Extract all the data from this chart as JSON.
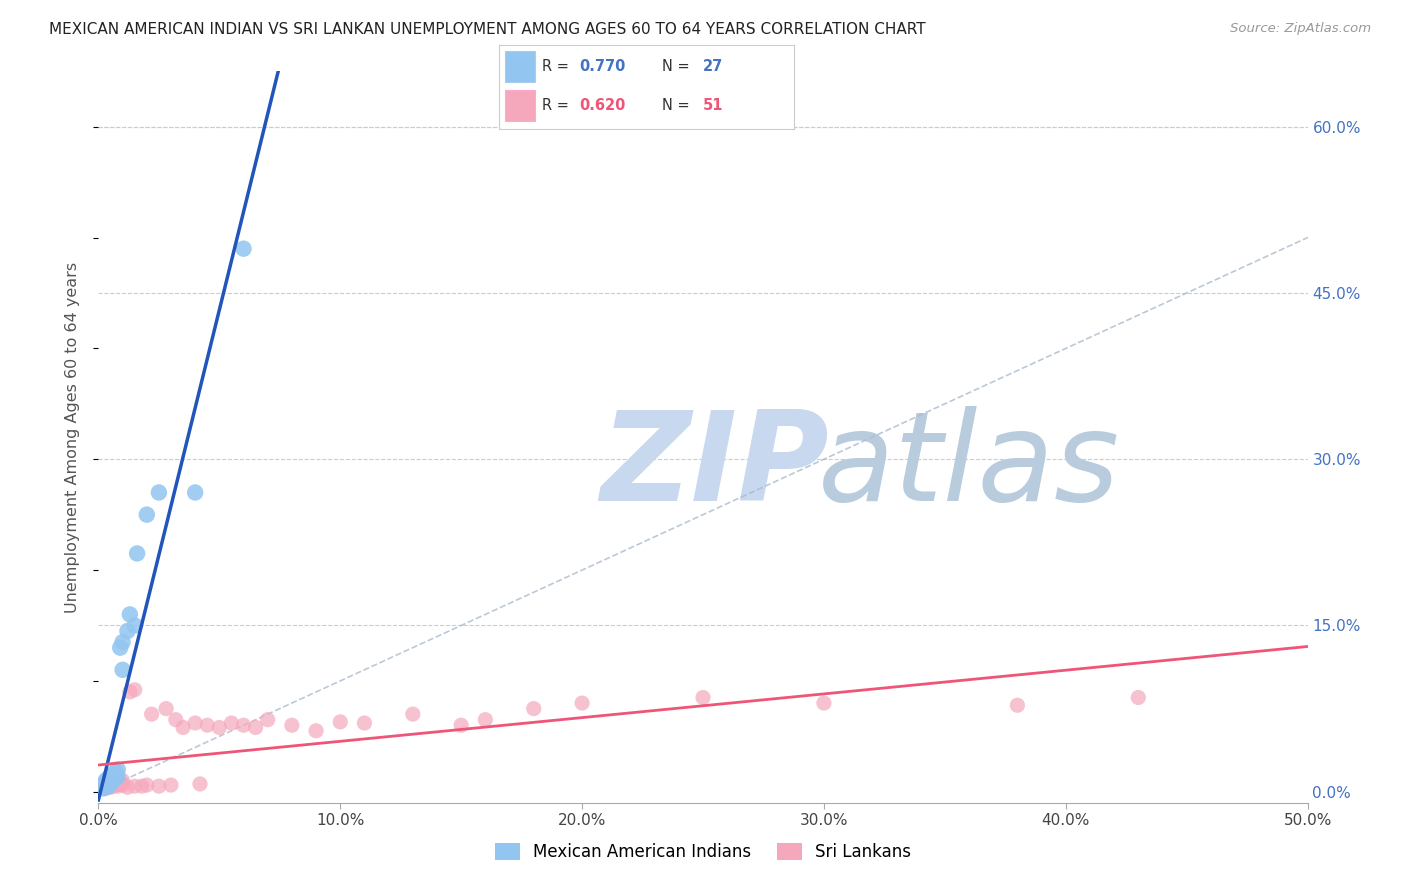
{
  "title": "MEXICAN AMERICAN INDIAN VS SRI LANKAN UNEMPLOYMENT AMONG AGES 60 TO 64 YEARS CORRELATION CHART",
  "source": "Source: ZipAtlas.com",
  "ylabel": "Unemployment Among Ages 60 to 64 years",
  "xlabel_ticks": [
    "0.0%",
    "10.0%",
    "20.0%",
    "30.0%",
    "40.0%",
    "50.0%"
  ],
  "ylabel_ticks": [
    "0.0%",
    "15.0%",
    "30.0%",
    "45.0%",
    "60.0%"
  ],
  "xlim": [
    0.0,
    0.5
  ],
  "ylim": [
    -0.01,
    0.65
  ],
  "legend_blue_label": "Mexican American Indians",
  "legend_pink_label": "Sri Lankans",
  "R_blue": 0.77,
  "N_blue": 27,
  "R_pink": 0.62,
  "N_pink": 51,
  "blue_color": "#92C5F0",
  "pink_color": "#F5A8BB",
  "blue_line_color": "#2255BB",
  "pink_line_color": "#EE5577",
  "diagonal_color": "#AABBCC",
  "watermark_zip_color": "#C8D8EE",
  "watermark_atlas_color": "#B8CCDD",
  "blue_x": [
    0.001,
    0.002,
    0.002,
    0.003,
    0.003,
    0.003,
    0.004,
    0.004,
    0.005,
    0.005,
    0.006,
    0.006,
    0.007,
    0.007,
    0.008,
    0.008,
    0.009,
    0.01,
    0.01,
    0.012,
    0.013,
    0.015,
    0.016,
    0.02,
    0.025,
    0.04,
    0.06
  ],
  "blue_y": [
    0.005,
    0.003,
    0.006,
    0.004,
    0.008,
    0.01,
    0.005,
    0.012,
    0.007,
    0.013,
    0.01,
    0.015,
    0.012,
    0.018,
    0.014,
    0.02,
    0.13,
    0.135,
    0.11,
    0.145,
    0.16,
    0.15,
    0.215,
    0.25,
    0.27,
    0.27,
    0.49
  ],
  "pink_x": [
    0.001,
    0.002,
    0.002,
    0.003,
    0.003,
    0.004,
    0.004,
    0.005,
    0.005,
    0.006,
    0.006,
    0.007,
    0.007,
    0.008,
    0.008,
    0.009,
    0.01,
    0.01,
    0.012,
    0.013,
    0.015,
    0.015,
    0.018,
    0.02,
    0.022,
    0.025,
    0.028,
    0.03,
    0.032,
    0.035,
    0.04,
    0.042,
    0.045,
    0.05,
    0.055,
    0.06,
    0.065,
    0.07,
    0.08,
    0.09,
    0.1,
    0.11,
    0.13,
    0.15,
    0.16,
    0.18,
    0.2,
    0.25,
    0.3,
    0.38,
    0.43
  ],
  "pink_y": [
    0.005,
    0.004,
    0.006,
    0.003,
    0.007,
    0.005,
    0.008,
    0.004,
    0.007,
    0.005,
    0.009,
    0.006,
    0.008,
    0.005,
    0.01,
    0.007,
    0.006,
    0.01,
    0.004,
    0.09,
    0.005,
    0.092,
    0.005,
    0.006,
    0.07,
    0.005,
    0.075,
    0.006,
    0.065,
    0.058,
    0.062,
    0.007,
    0.06,
    0.058,
    0.062,
    0.06,
    0.058,
    0.065,
    0.06,
    0.055,
    0.063,
    0.062,
    0.07,
    0.06,
    0.065,
    0.075,
    0.08,
    0.085,
    0.08,
    0.078,
    0.085
  ]
}
